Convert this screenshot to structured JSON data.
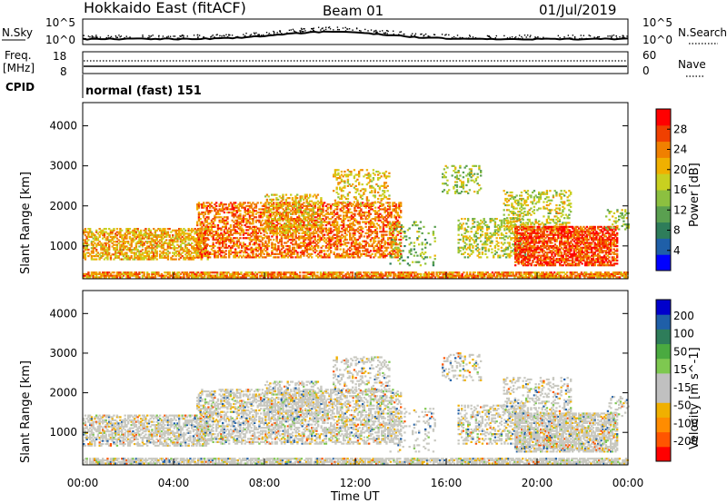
{
  "header": {
    "station": "Hokkaido East (fitACF)",
    "beam": "Beam 01",
    "date": "01/Jul/2019"
  },
  "strip": {
    "nsky_label": "N.Sky",
    "nsky_ticks": [
      "10^5",
      "10^0"
    ],
    "nsearch_label": "N.Search",
    "nsearch_ticks": [
      "10^5",
      "10^0"
    ],
    "freq_label_1": "Freq.",
    "freq_label_2": "[MHz]",
    "freq_ticks": [
      "18",
      "8"
    ],
    "nave_label": "Nave",
    "nave_ticks": [
      "60",
      "0"
    ],
    "cpid_label": "CPID",
    "cpid_value": "normal (fast) 151"
  },
  "colors": {
    "power": [
      "#0000ff",
      "#1f5fa8",
      "#2e7d5a",
      "#5aa050",
      "#8cc040",
      "#c8d020",
      "#f0b000",
      "#f08000",
      "#f04000",
      "#ff0000"
    ],
    "velocity": [
      "#ff0000",
      "#ff5500",
      "#ff8c00",
      "#f0b000",
      "#c0c0c0",
      "#c0c0c0",
      "#7ec850",
      "#4aaa40",
      "#2e7d5a",
      "#1f5fa8",
      "#0000cc"
    ]
  },
  "chart_data": [
    {
      "type": "heatmap",
      "xlabel": "Time UT",
      "ylabel": "Slant Range [km]",
      "x_ticks": [
        "00:00",
        "04:00",
        "08:00",
        "12:00",
        "16:00",
        "20:00",
        "00:00"
      ],
      "xlim": [
        0,
        24
      ],
      "y_ticks": [
        1000,
        2000,
        3000,
        4000
      ],
      "ylim": [
        180,
        4580
      ],
      "colorbar_label": "Power [dB]",
      "colorbar_ticks": [
        4,
        8,
        12,
        16,
        20,
        24,
        28
      ],
      "colorbar_range": [
        0,
        32
      ],
      "grid": false,
      "legend": "right"
    },
    {
      "type": "heatmap",
      "xlabel": "Time UT",
      "ylabel": "Slant Range [km]",
      "x_ticks": [
        "00:00",
        "04:00",
        "08:00",
        "12:00",
        "16:00",
        "20:00",
        "00:00"
      ],
      "xlim": [
        0,
        24
      ],
      "y_ticks": [
        1000,
        2000,
        3000,
        4000
      ],
      "ylim": [
        180,
        4580
      ],
      "colorbar_label": "Velocity [m s^-1]",
      "colorbar_ticks": [
        200,
        100,
        50,
        15,
        -15,
        -50,
        -100,
        -200
      ],
      "colorbar_range": [
        -250,
        250
      ],
      "grid": false,
      "legend": "right"
    }
  ]
}
